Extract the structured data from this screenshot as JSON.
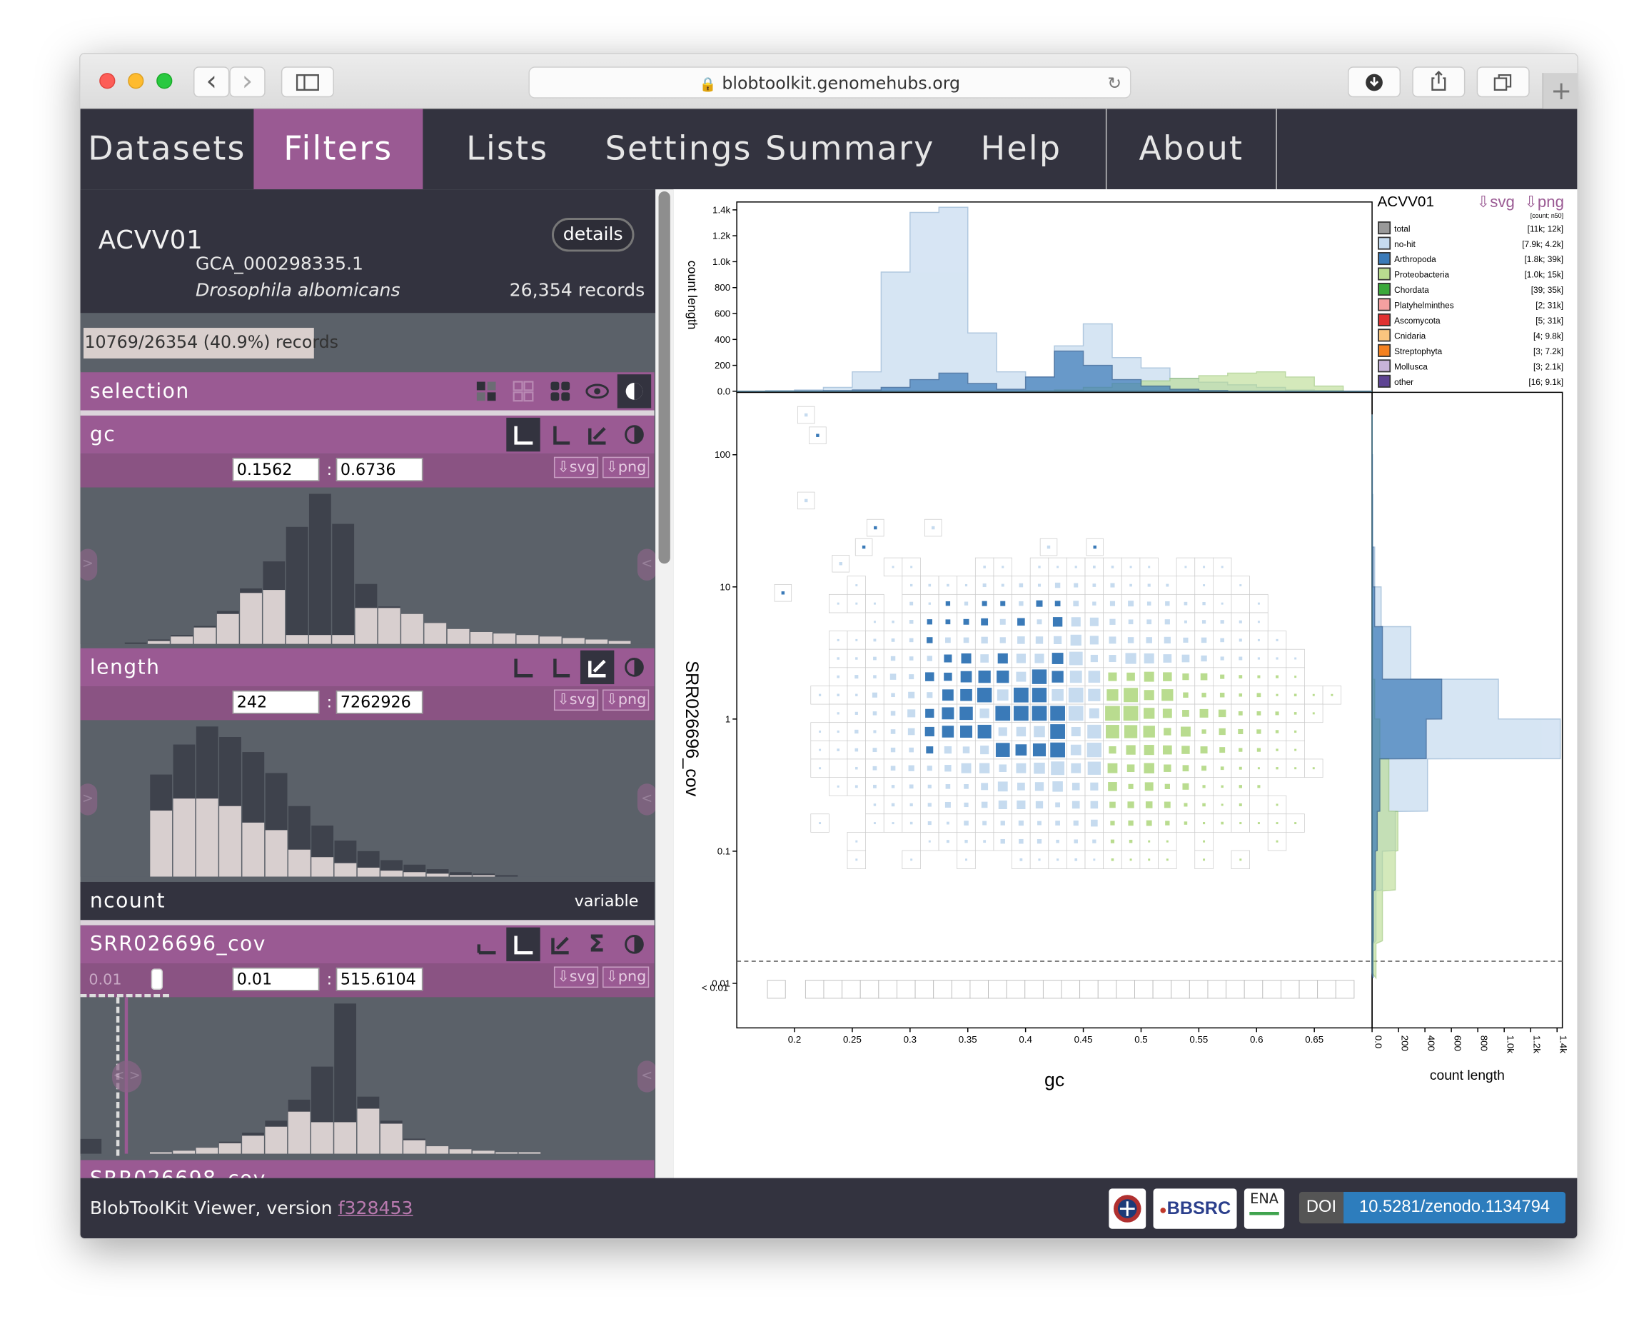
{
  "browser": {
    "url": "blobtoolkit.genomehubs.org",
    "back_icon": "‹",
    "forward_icon": "›"
  },
  "nav": {
    "tabs": [
      "Datasets",
      "Filters",
      "Lists",
      "Settings",
      "Summary",
      "Help",
      "About"
    ],
    "active": "Filters"
  },
  "dataset": {
    "id": "ACVV01",
    "accession": "GCA_000298335.1",
    "species": "Drosophila albomicans",
    "records": "26,354 records",
    "details_label": "details",
    "selection_summary": "10769/26354 (40.9%) records"
  },
  "filters": {
    "selection_label": "selection",
    "gc": {
      "label": "gc",
      "min": "0.1562",
      "max": "0.6736",
      "svg": "⇩svg",
      "png": "⇩png",
      "hist_total": [
        1,
        3,
        6,
        12,
        22,
        37,
        55,
        78,
        100,
        80,
        40,
        25,
        20,
        14,
        10,
        8,
        7,
        6,
        5,
        4,
        3,
        2
      ],
      "hist_selected": [
        0,
        2,
        5,
        11,
        20,
        34,
        36,
        6,
        6,
        6,
        24,
        24,
        20,
        14,
        10,
        8,
        7,
        6,
        5,
        4,
        3,
        2
      ]
    },
    "length": {
      "label": "length",
      "min": "242",
      "max": "7262926",
      "svg": "⇩svg",
      "png": "⇩png",
      "hist_total": [
        68,
        88,
        100,
        93,
        83,
        69,
        47,
        34,
        24,
        17,
        11,
        8,
        5,
        3,
        2,
        1
      ],
      "hist_selected": [
        44,
        52,
        52,
        47,
        36,
        31,
        18,
        13,
        9,
        6,
        4,
        3,
        2,
        1,
        1,
        0
      ]
    },
    "ncount": {
      "label": "ncount",
      "value": "variable"
    },
    "cov": {
      "label": "SRR026696_cov",
      "min": "0.01",
      "max": "515.6104",
      "svg": "⇩svg",
      "png": "⇩png",
      "extra": "0.01",
      "hist_total": [
        0,
        1,
        2,
        4,
        8,
        14,
        22,
        36,
        58,
        100,
        38,
        22,
        10,
        5,
        3,
        2,
        1,
        1,
        0,
        0
      ],
      "hist_selected": [
        0,
        1,
        2,
        4,
        7,
        12,
        18,
        28,
        21,
        21,
        30,
        20,
        9,
        5,
        3,
        2,
        1,
        1,
        0,
        0
      ]
    },
    "next_label": "SRR026698_cov"
  },
  "plot": {
    "title": "ACVV01",
    "svg": "⇩svg",
    "png": "⇩png",
    "legend_header": "[count; n50]",
    "xlabel": "gc",
    "ylabel": "SRR026696_cov",
    "side_label": "count length",
    "top_ylabel": "count length",
    "x_ticks": [
      "0.2",
      "0.25",
      "0.3",
      "0.35",
      "0.4",
      "0.45",
      "0.5",
      "0.55",
      "0.6",
      "0.65"
    ],
    "y_ticks": [
      "100",
      "10",
      "1",
      "0.1",
      "0.01"
    ],
    "below_label": "< 0.01",
    "top_ticks": [
      "1.4k",
      "1.2k",
      "1.0k",
      "800",
      "600",
      "400",
      "200",
      "0.0"
    ],
    "side_ticks": [
      "0.0",
      "200",
      "400",
      "600",
      "800",
      "1.0k",
      "1.2k",
      "1.4k"
    ]
  },
  "chart_data": {
    "type": "scatter",
    "title": "ACVV01",
    "xlabel": "gc",
    "ylabel": "SRR026696_cov",
    "xlim": [
      0.15,
      0.7
    ],
    "ylim": [
      0.01,
      515.6104
    ],
    "y_scale": "log",
    "legend": [
      {
        "name": "total",
        "stats": "[11k; 12k]",
        "color": "#999999"
      },
      {
        "name": "no-hit",
        "stats": "[7.9k; 4.2k]",
        "color": "#c6dbef"
      },
      {
        "name": "Arthropoda",
        "stats": "[1.8k; 39k]",
        "color": "#3a7ab8"
      },
      {
        "name": "Proteobacteria",
        "stats": "[1.0k; 15k]",
        "color": "#b9dc8f"
      },
      {
        "name": "Chordata",
        "stats": "[39; 35k]",
        "color": "#3aa83a"
      },
      {
        "name": "Platyhelminthes",
        "stats": "[2; 31k]",
        "color": "#f4a0a0"
      },
      {
        "name": "Ascomycota",
        "stats": "[5; 31k]",
        "color": "#e03131"
      },
      {
        "name": "Cnidaria",
        "stats": "[4; 9.8k]",
        "color": "#fac57f"
      },
      {
        "name": "Streptophyta",
        "stats": "[3; 7.2k]",
        "color": "#f4811f"
      },
      {
        "name": "Mollusca",
        "stats": "[3; 2.1k]",
        "color": "#c7b3d9"
      },
      {
        "name": "other",
        "stats": "[16; 9.1k]",
        "color": "#5e4493"
      }
    ],
    "top_hist": {
      "x": [
        0.15,
        0.175,
        0.2,
        0.225,
        0.25,
        0.275,
        0.3,
        0.325,
        0.35,
        0.375,
        0.4,
        0.425,
        0.45,
        0.475,
        0.5,
        0.525,
        0.55,
        0.575,
        0.6,
        0.625,
        0.65,
        0.675
      ],
      "no_hit": [
        0,
        5,
        10,
        30,
        150,
        920,
        1380,
        1420,
        450,
        150,
        110,
        350,
        520,
        260,
        180,
        100,
        70,
        50,
        30,
        10,
        5,
        0
      ],
      "arthropoda": [
        0,
        0,
        2,
        5,
        10,
        30,
        90,
        140,
        60,
        15,
        110,
        310,
        200,
        90,
        40,
        15,
        5,
        0,
        0,
        0,
        0,
        0
      ],
      "proteobacteria": [
        0,
        0,
        0,
        0,
        0,
        0,
        0,
        0,
        0,
        0,
        2,
        10,
        30,
        60,
        80,
        100,
        120,
        140,
        150,
        110,
        40,
        0
      ]
    },
    "side_hist": {
      "y": [
        0.01,
        0.02,
        0.05,
        0.1,
        0.2,
        0.5,
        1,
        2,
        5,
        10,
        20,
        50,
        100
      ],
      "no_hit": [
        10,
        30,
        80,
        180,
        430,
        1460,
        980,
        300,
        70,
        20,
        5,
        3,
        1
      ],
      "arthropoda": [
        5,
        10,
        25,
        40,
        60,
        420,
        540,
        80,
        20,
        8,
        2,
        1,
        0
      ],
      "proteobacteria": [
        30,
        80,
        180,
        200,
        130,
        60,
        20,
        5,
        0,
        0,
        0,
        0,
        0
      ]
    }
  },
  "footer": {
    "version_text": "BlobToolKit Viewer, version ",
    "version_link": "f328453",
    "logos": [
      "BBSRC",
      "ENA"
    ],
    "doi_label": "DOI",
    "doi": "10.5281/zenodo.1134794"
  }
}
